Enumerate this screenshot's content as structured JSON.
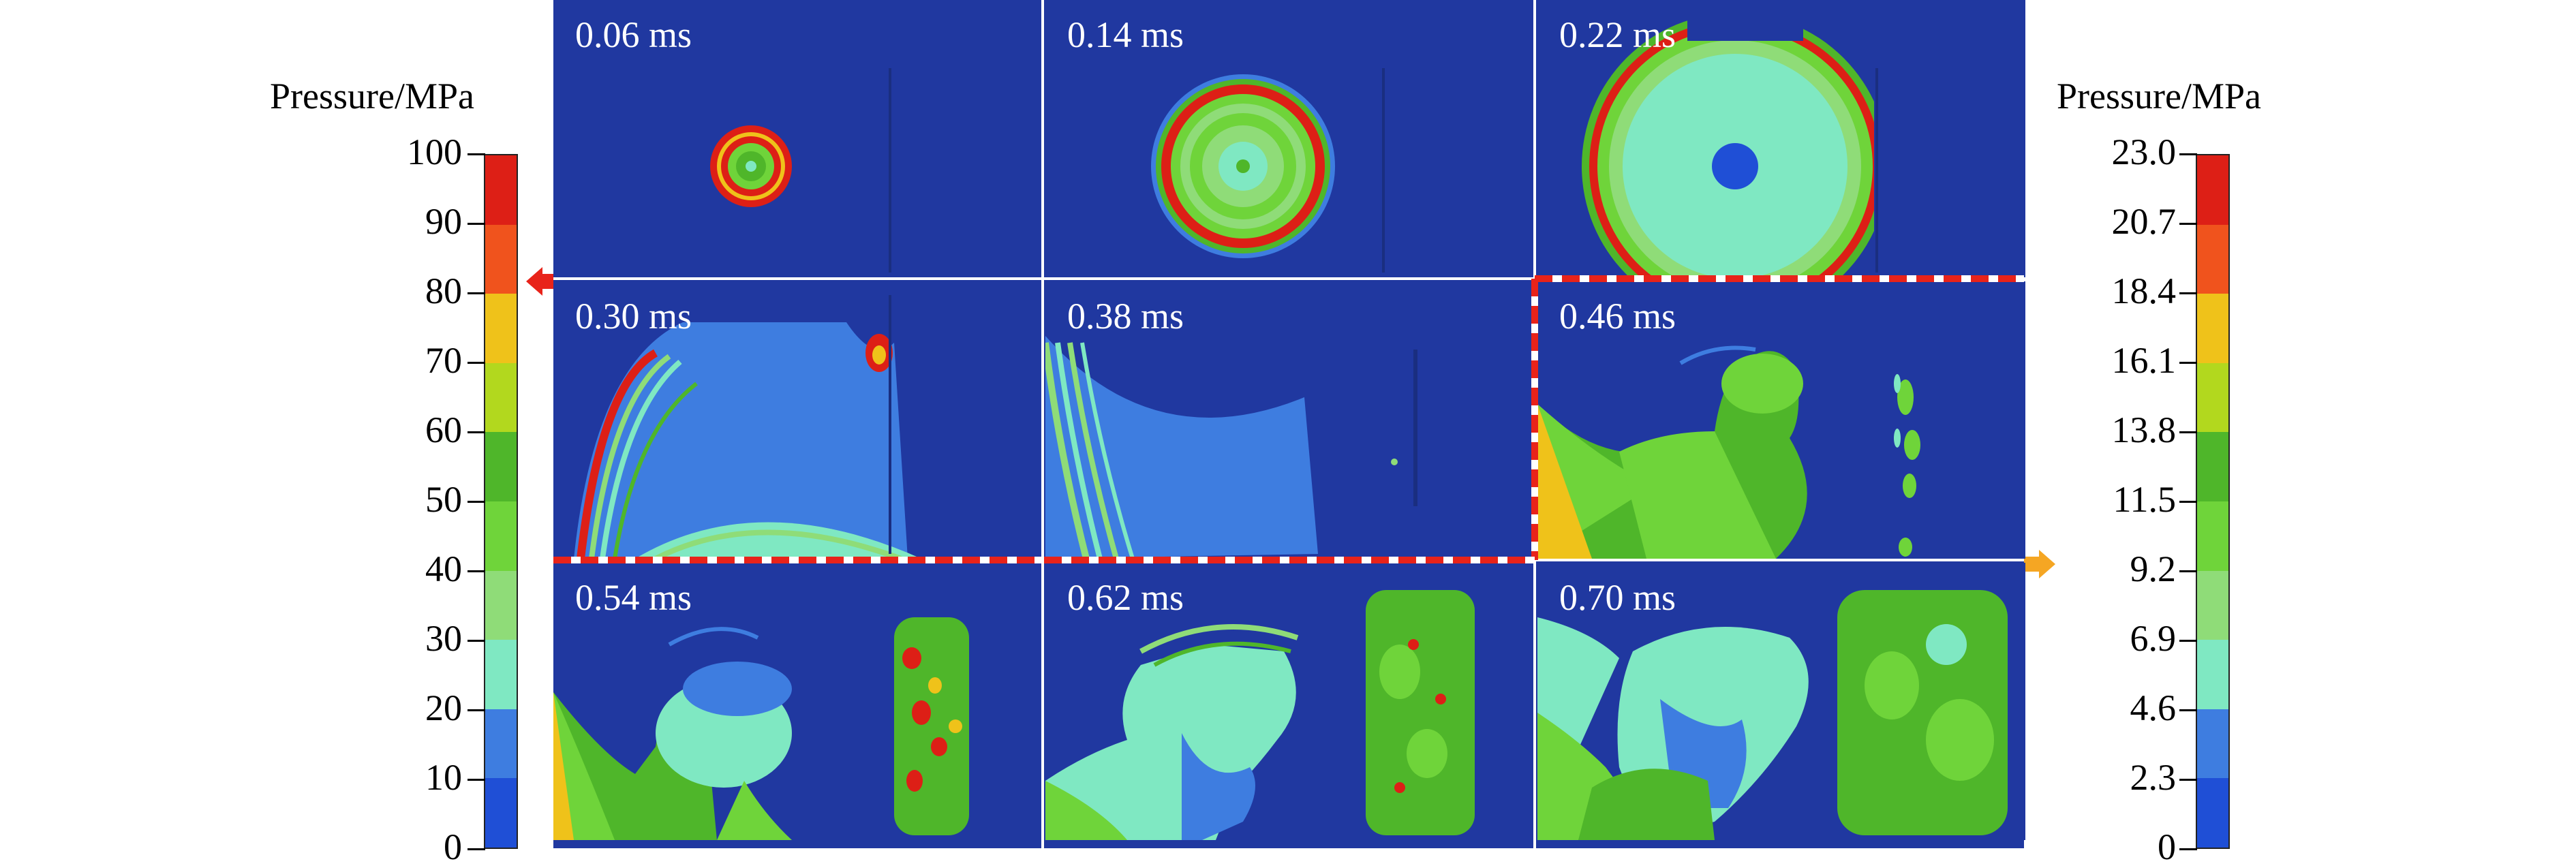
{
  "left_bar": {
    "title": "Pressure/MPa",
    "ticks": [
      "100",
      "90",
      "80",
      "70",
      "60",
      "50",
      "40",
      "30",
      "20",
      "10",
      "0"
    ],
    "arrow_color": "#e8231a"
  },
  "right_bar": {
    "title": "Pressure/MPa",
    "ticks": [
      "23.0",
      "20.7",
      "18.4",
      "16.1",
      "13.8",
      "11.5",
      "9.2",
      "6.9",
      "4.6",
      "2.3",
      "0"
    ],
    "arrow_color": "#f5a623"
  },
  "colormap": [
    "#dd1f16",
    "#f0531d",
    "#efc21a",
    "#b2d81e",
    "#4fb62a",
    "#6fd43a",
    "#8fdc78",
    "#7fe8c2",
    "#3e7de0",
    "#1f4fd6"
  ],
  "panels": [
    {
      "time": "0.06 ms"
    },
    {
      "time": "0.14 ms"
    },
    {
      "time": "0.22 ms"
    },
    {
      "time": "0.30 ms"
    },
    {
      "time": "0.38 ms"
    },
    {
      "time": "0.46 ms"
    },
    {
      "time": "0.54 ms"
    },
    {
      "time": "0.62 ms"
    },
    {
      "time": "0.70 ms"
    }
  ],
  "highlight_color": "#e8231a"
}
